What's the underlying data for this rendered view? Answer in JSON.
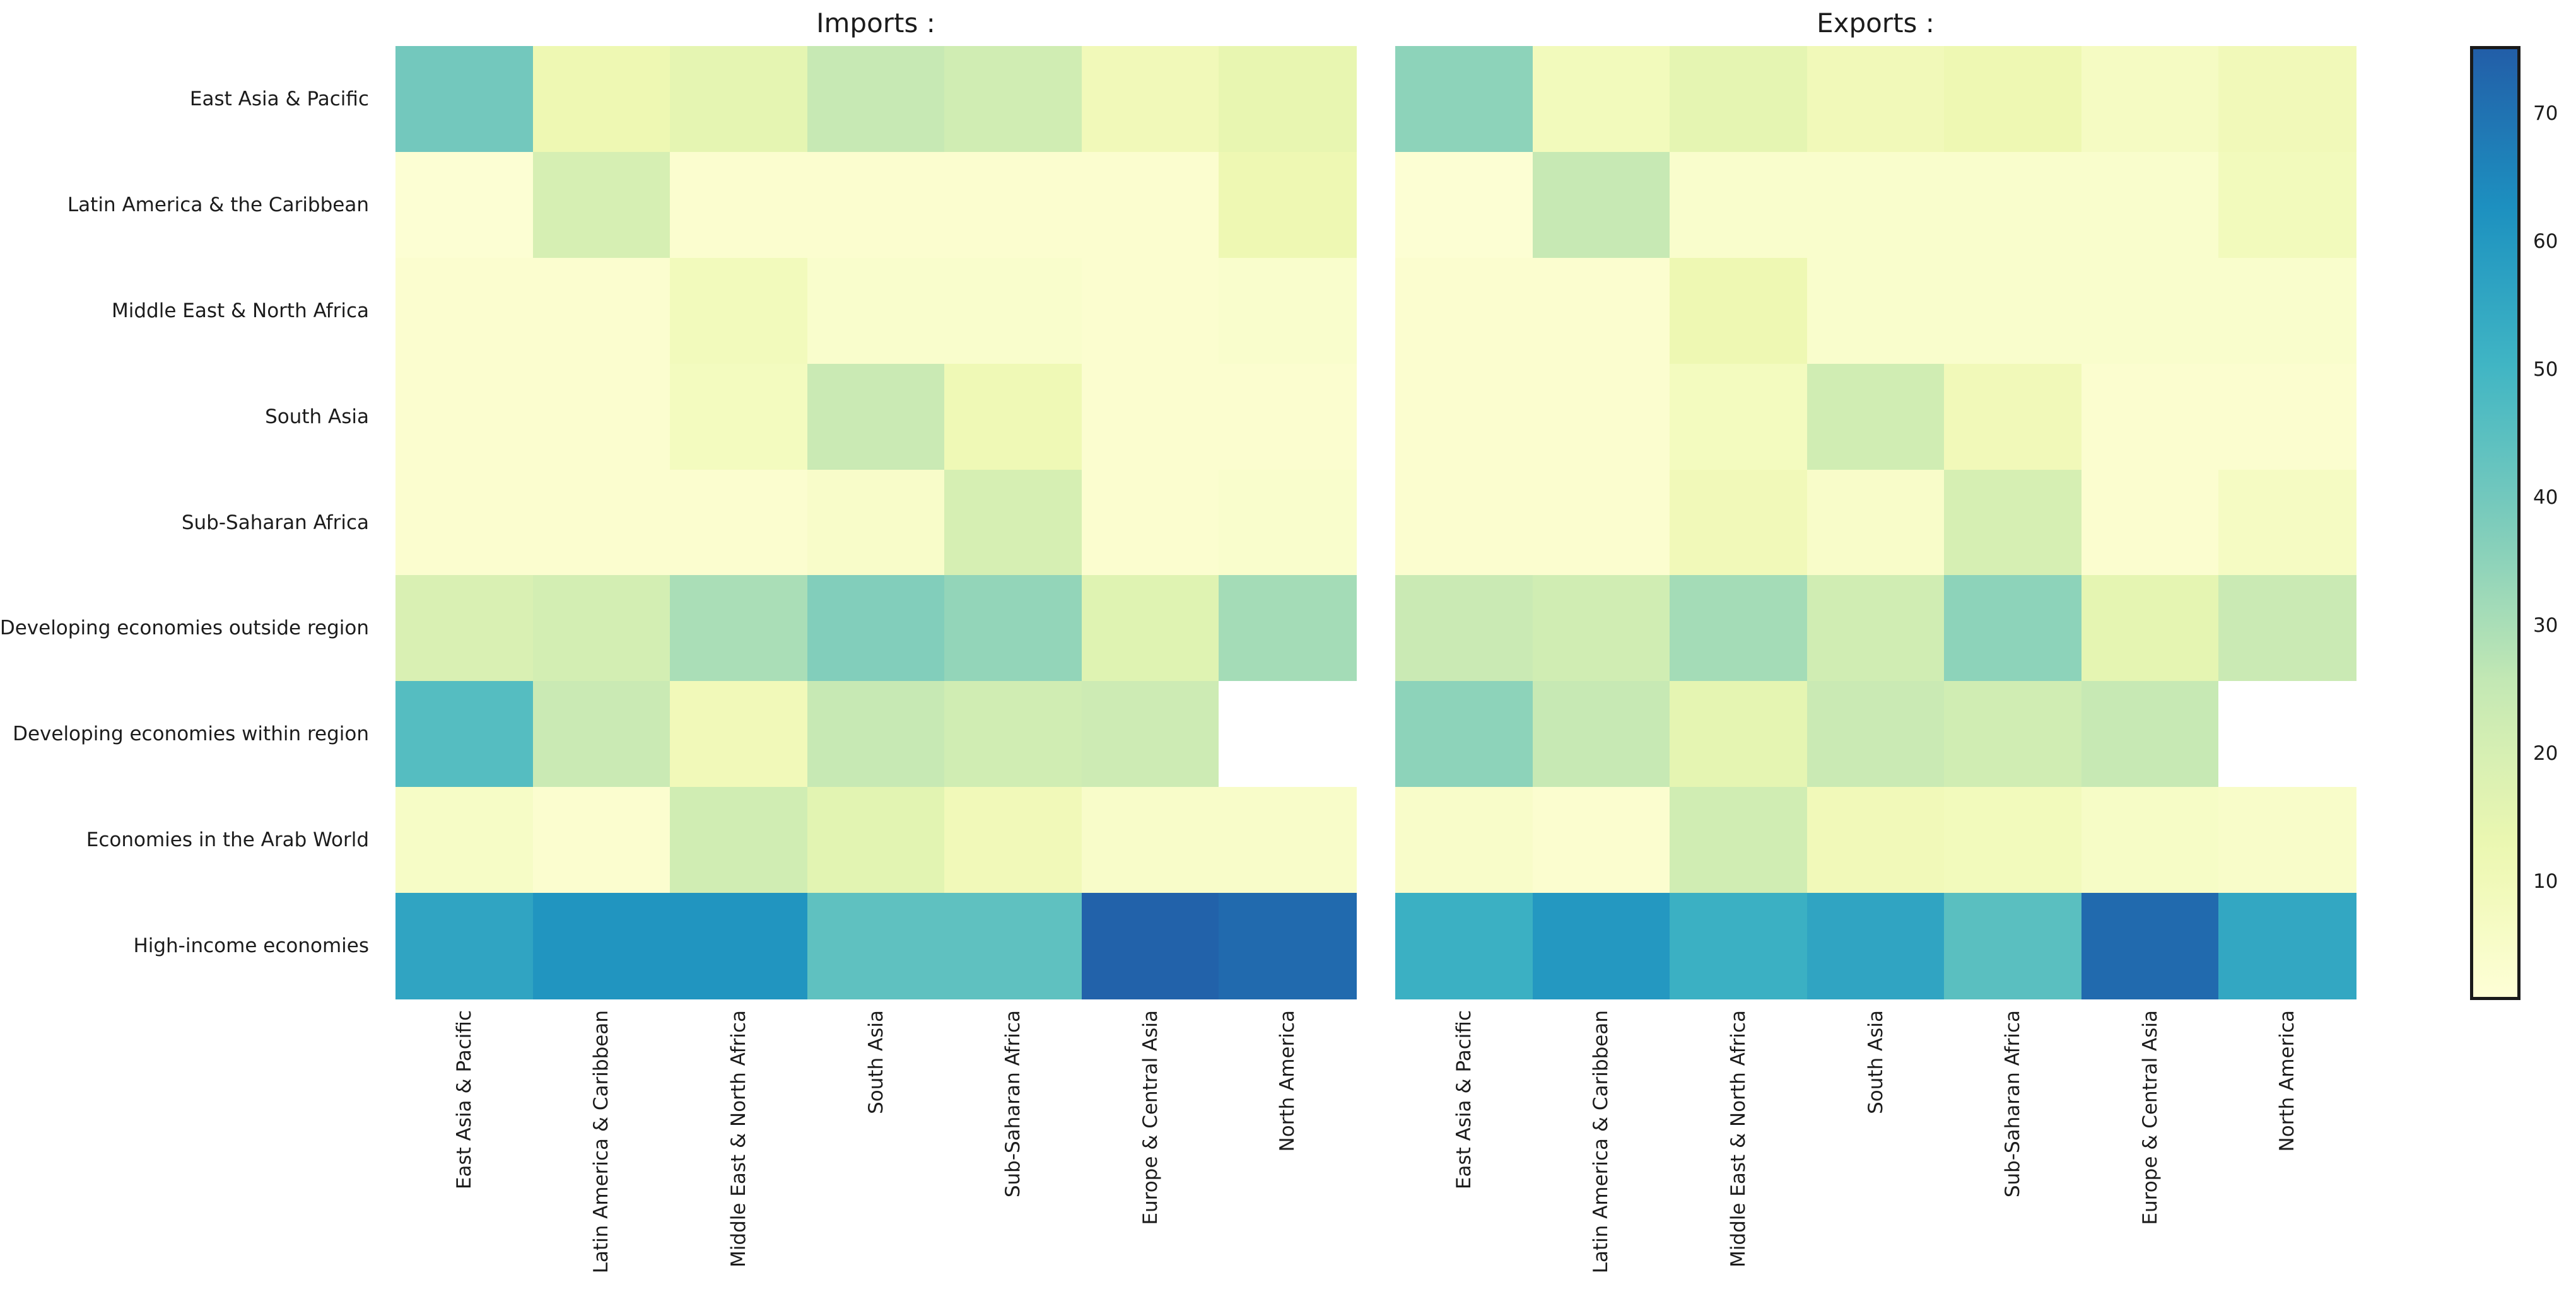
{
  "figure": {
    "background": "#ffffff",
    "text_color": "#1c1c1c"
  },
  "chart_data": [
    {
      "type": "heatmap",
      "title": "Imports :",
      "legend_position": "none",
      "grid": false,
      "rows": [
        "East Asia & Pacific",
        "Latin America & the Caribbean",
        "Middle East & North Africa",
        "South Asia",
        "Sub-Saharan Africa",
        "Developing economies outside region",
        "Developing economies within region",
        "Economies in the Arab World",
        "High-income economies"
      ],
      "columns": [
        "East Asia & Pacific",
        "Latin America & Caribbean",
        "Middle East & North Africa",
        "South Asia",
        "Sub-Saharan Africa",
        "Europe & Central Asia",
        "North America"
      ],
      "values": [
        [
          40,
          12,
          15,
          25,
          22,
          10,
          14
        ],
        [
          2,
          20,
          3,
          3,
          3,
          3,
          12
        ],
        [
          3,
          3,
          9,
          4,
          4,
          3,
          4
        ],
        [
          3,
          3,
          8,
          24,
          11,
          3,
          3
        ],
        [
          3,
          3,
          3,
          5,
          20,
          3,
          4
        ],
        [
          19,
          21,
          30,
          37,
          34,
          17,
          31
        ],
        [
          46,
          24,
          10,
          25,
          22,
          23,
          null
        ],
        [
          6,
          3,
          22,
          16,
          10,
          5,
          5
        ],
        [
          56,
          61,
          61,
          44,
          44,
          74,
          72
        ]
      ]
    },
    {
      "type": "heatmap",
      "title": "Exports :",
      "legend_position": "none",
      "grid": false,
      "rows": [
        "East Asia & Pacific",
        "Latin America & the Caribbean",
        "Middle East & North Africa",
        "South Asia",
        "Sub-Saharan Africa",
        "Developing economies outside region",
        "Developing economies within region",
        "Economies in the Arab World",
        "High-income economies"
      ],
      "columns": [
        "East Asia & Pacific",
        "Latin America & Caribbean",
        "Middle East & North Africa",
        "South Asia",
        "Sub-Saharan Africa",
        "Europe & Central Asia",
        "North America"
      ],
      "values": [
        [
          35,
          9,
          15,
          10,
          12,
          7,
          10
        ],
        [
          2,
          25,
          4,
          4,
          4,
          4,
          9
        ],
        [
          3,
          3,
          12,
          4,
          4,
          4,
          4
        ],
        [
          3,
          3,
          8,
          22,
          10,
          3,
          3
        ],
        [
          3,
          3,
          10,
          5,
          20,
          3,
          7
        ],
        [
          24,
          22,
          31,
          22,
          35,
          15,
          24
        ],
        [
          35,
          25,
          15,
          24,
          22,
          25,
          null
        ],
        [
          5,
          3,
          22,
          10,
          9,
          6,
          5
        ],
        [
          52,
          60,
          52,
          56,
          45,
          72,
          55
        ]
      ]
    }
  ],
  "colormap": {
    "name": "YlGnBu",
    "vmin": 0,
    "vmax": 100,
    "missing_color": "#ffffff",
    "stops": [
      [
        0.0,
        "#ffffd9"
      ],
      [
        0.125,
        "#edf8b1"
      ],
      [
        0.25,
        "#c7e9b4"
      ],
      [
        0.375,
        "#7fcdbb"
      ],
      [
        0.5,
        "#41b6c4"
      ],
      [
        0.625,
        "#1d91c0"
      ],
      [
        0.75,
        "#225ea8"
      ],
      [
        0.875,
        "#253494"
      ],
      [
        1.0,
        "#081d58"
      ]
    ]
  },
  "colorbar": {
    "data_min": 1,
    "data_max": 75,
    "ticks": [
      10,
      20,
      30,
      40,
      50,
      60,
      70
    ],
    "outline_color": "#1a1a1a"
  }
}
